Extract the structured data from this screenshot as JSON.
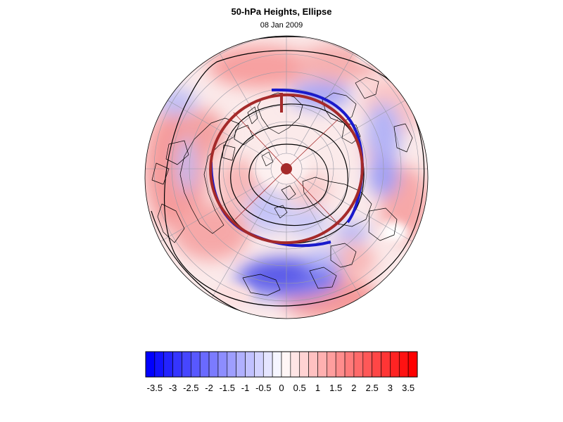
{
  "title": "50-hPa Heights, Ellipse",
  "subtitle": "08 Jan 2009",
  "colorbar": {
    "min": -3.75,
    "max": 3.75,
    "step": 0.25,
    "labels": [
      "-3.5",
      "-3",
      "-2.5",
      "-2",
      "-1.5",
      "-1",
      "-0.5",
      "0",
      "0.5",
      "1",
      "1.5",
      "2",
      "2.5",
      "3",
      "3.5"
    ],
    "label_values": [
      -3.5,
      -3,
      -2.5,
      -2,
      -1.5,
      -1,
      -0.5,
      0,
      0.5,
      1,
      1.5,
      2,
      2.5,
      3,
      3.5
    ],
    "negative_color": "#0000ff",
    "positive_color": "#ff0000",
    "neutral_color": "#ffffff"
  },
  "map": {
    "projection": "polar-stereographic-north",
    "graticule_color": "#9a9aa6",
    "coast_color": "#000000",
    "contour_color": "#000000",
    "ellipse_color": "#a52a2a",
    "highlight_color": "#1a1acc"
  }
}
